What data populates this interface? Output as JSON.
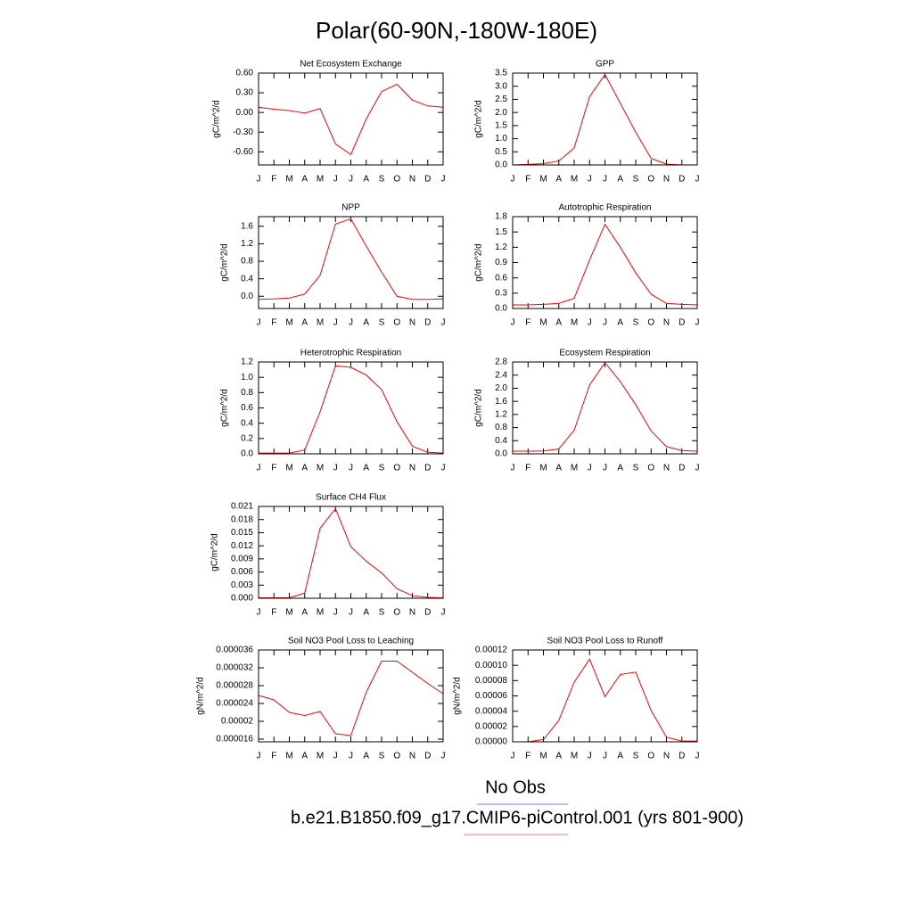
{
  "title": "Polar(60-90N,-180W-180E)",
  "legend": [
    {
      "name": "No Obs",
      "color": "#7b7bf0"
    },
    {
      "name": "b.e21.B1850.f09_g17.CMIP6-piControl.001 (yrs 801-900)",
      "color": "#f07b7b"
    }
  ],
  "chart_data": [
    {
      "type": "line",
      "title": "Net Ecosystem Exchange",
      "ylabel": "gC/m^2/d",
      "color": "#ff0000",
      "categories": [
        "J",
        "F",
        "M",
        "A",
        "M",
        "J",
        "J",
        "A",
        "S",
        "O",
        "N",
        "D",
        "J"
      ],
      "values": [
        0.08,
        0.05,
        0.03,
        -0.01,
        0.06,
        -0.48,
        -0.64,
        -0.1,
        0.32,
        0.43,
        0.19,
        0.1,
        0.08
      ],
      "ylim": [
        -0.8,
        0.6
      ],
      "yticks": [
        {
          "value": 0.6,
          "label": "0.60"
        },
        {
          "value": 0.3,
          "label": "0.30"
        },
        {
          "value": 0,
          "label": "0.00"
        },
        {
          "value": -0.3,
          "label": "-0.30"
        },
        {
          "value": -0.6,
          "label": "-0.60"
        }
      ]
    },
    {
      "type": "line",
      "title": "GPP",
      "ylabel": "gC/m^2/d",
      "color": "#ff0000",
      "categories": [
        "J",
        "F",
        "M",
        "A",
        "M",
        "J",
        "J",
        "A",
        "S",
        "O",
        "N",
        "D",
        "J"
      ],
      "values": [
        0.0,
        0.02,
        0.05,
        0.15,
        0.65,
        2.6,
        3.45,
        2.35,
        1.25,
        0.25,
        0.03,
        0.0,
        0.0
      ],
      "ylim": [
        0,
        3.5
      ],
      "yticks": [
        {
          "value": 0,
          "label": "0.0"
        },
        0.5,
        {
          "value": 1,
          "label": "1.0"
        },
        1.5,
        {
          "value": 2,
          "label": "2.0"
        },
        2.5,
        {
          "value": 3,
          "label": "3.0"
        },
        3.5
      ]
    },
    {
      "type": "line",
      "title": "NPP",
      "ylabel": "gC/m^2/d",
      "color": "#ff0000",
      "categories": [
        "J",
        "F",
        "M",
        "A",
        "M",
        "J",
        "J",
        "A",
        "S",
        "O",
        "N",
        "D",
        "J"
      ],
      "values": [
        -0.07,
        -0.06,
        -0.04,
        0.05,
        0.48,
        1.65,
        1.77,
        1.15,
        0.55,
        0.0,
        -0.07,
        -0.07,
        -0.06
      ],
      "ylim": [
        -0.28,
        1.82
      ],
      "yticks": [
        {
          "value": 0,
          "label": "0.0"
        },
        0.4,
        0.8,
        1.2,
        1.6
      ]
    },
    {
      "type": "line",
      "title": "Autotrophic Respiration",
      "ylabel": "gC/m^2/d",
      "color": "#ff0000",
      "categories": [
        "J",
        "F",
        "M",
        "A",
        "M",
        "J",
        "J",
        "A",
        "S",
        "O",
        "N",
        "D",
        "J"
      ],
      "values": [
        0.07,
        0.07,
        0.08,
        0.1,
        0.2,
        0.95,
        1.65,
        1.2,
        0.7,
        0.28,
        0.1,
        0.08,
        0.07
      ],
      "ylim": [
        0,
        1.8
      ],
      "yticks": [
        {
          "value": 0,
          "label": "0.0"
        },
        0.3,
        0.6,
        0.9,
        1.2,
        1.5,
        1.8
      ]
    },
    {
      "type": "line",
      "title": "Heterotrophic Respiration",
      "ylabel": "gC/m^2/d",
      "color": "#ff0000",
      "categories": [
        "J",
        "F",
        "M",
        "A",
        "M",
        "J",
        "J",
        "A",
        "S",
        "O",
        "N",
        "D",
        "J"
      ],
      "values": [
        0.01,
        0.01,
        0.01,
        0.05,
        0.55,
        1.15,
        1.13,
        1.03,
        0.84,
        0.42,
        0.1,
        0.02,
        0.01
      ],
      "ylim": [
        0,
        1.2
      ],
      "yticks": [
        {
          "value": 0,
          "label": "0.0"
        },
        0.2,
        0.4,
        0.6,
        0.8,
        {
          "value": 1,
          "label": "1.0"
        },
        1.2
      ]
    },
    {
      "type": "line",
      "title": "Ecosystem Respiration",
      "ylabel": "gC/m^2/d",
      "color": "#ff0000",
      "categories": [
        "J",
        "F",
        "M",
        "A",
        "M",
        "J",
        "J",
        "A",
        "S",
        "O",
        "N",
        "D",
        "J"
      ],
      "values": [
        0.08,
        0.08,
        0.09,
        0.15,
        0.72,
        2.1,
        2.78,
        2.2,
        1.5,
        0.7,
        0.22,
        0.1,
        0.08
      ],
      "ylim": [
        0,
        2.8
      ],
      "yticks": [
        {
          "value": 0,
          "label": "0.0"
        },
        0.4,
        0.8,
        1.2,
        1.6,
        {
          "value": 2,
          "label": "2.0"
        },
        2.4,
        2.8
      ]
    },
    {
      "type": "line",
      "title": "Surface CH4 Flux",
      "ylabel": "gC/m^2/d",
      "color": "#ff0000",
      "categories": [
        "J",
        "F",
        "M",
        "A",
        "M",
        "J",
        "J",
        "A",
        "S",
        "O",
        "N",
        "D",
        "J"
      ],
      "values": [
        0.0001,
        0.0001,
        0.0001,
        0.0012,
        0.016,
        0.0205,
        0.0118,
        0.0085,
        0.0058,
        0.0022,
        0.0006,
        0.0002,
        0.0001
      ],
      "ylim": [
        0,
        0.021
      ],
      "yticks": [
        {
          "value": 0,
          "label": "0.000"
        },
        0.003,
        0.006,
        0.009,
        0.012,
        0.015,
        0.018,
        0.021
      ]
    },
    {
      "type": "line",
      "title": "Soil NO3 Pool Loss to Leaching",
      "ylabel": "gN/m^2/d",
      "color": "#ff0000",
      "categories": [
        "J",
        "F",
        "M",
        "A",
        "M",
        "J",
        "J",
        "A",
        "S",
        "O",
        "N",
        "D",
        "J"
      ],
      "values": [
        2.58e-05,
        2.48e-05,
        2.2e-05,
        2.13e-05,
        2.22e-05,
        1.72e-05,
        1.68e-05,
        2.65e-05,
        3.35e-05,
        3.35e-05,
        3.1e-05,
        2.85e-05,
        2.62e-05
      ],
      "ylim": [
        1.54e-05,
        3.6e-05
      ],
      "yticks": [
        1.6e-05,
        2e-05,
        2.4e-05,
        2.8e-05,
        3.2e-05,
        3.6e-05
      ]
    },
    {
      "type": "line",
      "title": "Soil NO3 Pool Loss to Runoff",
      "ylabel": "gN/m^2/d",
      "color": "#ff0000",
      "categories": [
        "J",
        "F",
        "M",
        "A",
        "M",
        "J",
        "J",
        "A",
        "S",
        "O",
        "N",
        "D",
        "J"
      ],
      "values": [
        0,
        0,
        3e-06,
        2.8e-05,
        7.8e-05,
        0.000108,
        5.9e-05,
        8.8e-05,
        9.1e-05,
        4.1e-05,
        6e-06,
        1e-06,
        1e-06
      ],
      "ylim": [
        0,
        0.00012
      ],
      "yticks": [
        {
          "value": 0,
          "label": "0.00000"
        },
        2e-05,
        4e-05,
        6e-05,
        8e-05,
        {
          "value": 0.0001,
          "label": "0.00010"
        },
        0.00012
      ]
    }
  ]
}
